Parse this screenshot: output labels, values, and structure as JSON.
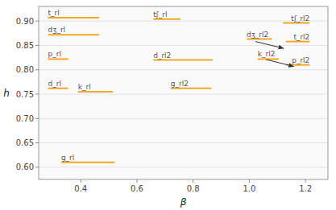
{
  "chart_data": {
    "type": "segment",
    "xlabel": "β",
    "ylabel": "h",
    "xlim": [
      0.25,
      1.28
    ],
    "ylim": [
      0.575,
      0.93
    ],
    "xticks": [
      0.4,
      0.6,
      0.8,
      {
        "value": 1.0,
        "label": "1.0"
      },
      1.2
    ],
    "yticks": [
      {
        "value": 0.6,
        "label": "0.60"
      },
      0.65,
      {
        "value": 0.7,
        "label": "0.70"
      },
      0.75,
      {
        "value": 0.8,
        "label": "0.80"
      },
      0.85,
      {
        "value": 0.9,
        "label": "0.90"
      }
    ],
    "color": "#f5a623",
    "grid": true,
    "segments": [
      {
        "label": "t_rl",
        "x0": 0.283,
        "x1": 0.465,
        "y": 0.907,
        "align": "left"
      },
      {
        "label": "dʒ_rl",
        "x0": 0.283,
        "x1": 0.465,
        "y": 0.872,
        "align": "left"
      },
      {
        "label": "p_rl",
        "x0": 0.283,
        "x1": 0.355,
        "y": 0.822,
        "align": "left"
      },
      {
        "label": "d_rl",
        "x0": 0.283,
        "x1": 0.355,
        "y": 0.762,
        "align": "left"
      },
      {
        "label": "k_rl",
        "x0": 0.39,
        "x1": 0.515,
        "y": 0.755,
        "align": "left"
      },
      {
        "label": "g_rl",
        "x0": 0.33,
        "x1": 0.52,
        "y": 0.61,
        "align": "left"
      },
      {
        "label": "tʃ_rl",
        "x0": 0.658,
        "x1": 0.755,
        "y": 0.904,
        "align": "left"
      },
      {
        "label": "d_rl2",
        "x0": 0.658,
        "x1": 0.87,
        "y": 0.82,
        "align": "left"
      },
      {
        "label": "g_rl2",
        "x0": 0.72,
        "x1": 0.865,
        "y": 0.762,
        "align": "left"
      },
      {
        "label": "tʃ_rl2",
        "x0": 1.12,
        "x1": 1.215,
        "y": 0.896,
        "align": "right"
      },
      {
        "label": "dʒ_rl2",
        "x0": 0.99,
        "x1": 1.08,
        "y": 0.863,
        "align": "left"
      },
      {
        "label": "t_rl2",
        "x0": 1.13,
        "x1": 1.215,
        "y": 0.858,
        "align": "right"
      },
      {
        "label": "k_rl2",
        "x0": 1.03,
        "x1": 1.105,
        "y": 0.822,
        "align": "left"
      },
      {
        "label": "p_rl2",
        "x0": 1.13,
        "x1": 1.215,
        "y": 0.81,
        "align": "right"
      }
    ],
    "arrows": [
      {
        "x0": 1.022,
        "y0": 0.858,
        "x1": 1.122,
        "y1": 0.844
      },
      {
        "x0": 1.06,
        "y0": 0.821,
        "x1": 1.158,
        "y1": 0.807
      }
    ]
  }
}
